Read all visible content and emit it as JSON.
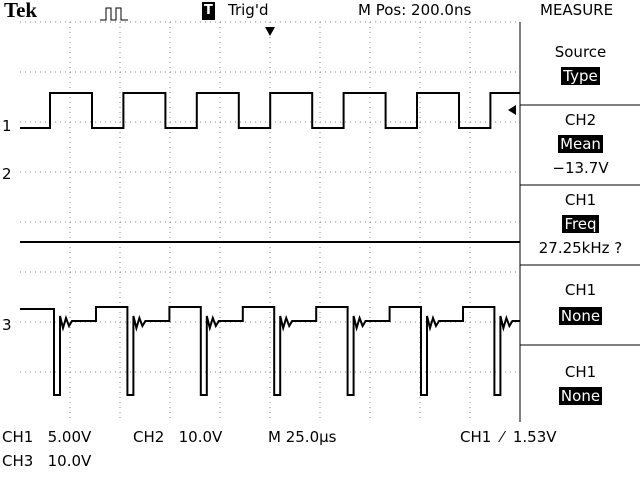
{
  "header": {
    "brand": "Tek",
    "trigger_icon": "T",
    "trigger_status": "Trig'd",
    "position": "M Pos: 200.0ns",
    "menu_title": "MEASURE"
  },
  "channel_markers": [
    "1",
    "2",
    "3"
  ],
  "menu": [
    {
      "label": "Source",
      "value": "Type"
    },
    {
      "label": "CH2",
      "value": "Mean",
      "reading": "−13.7V"
    },
    {
      "label": "CH1",
      "value": "Freq",
      "reading": "27.25kHz ?"
    },
    {
      "label": "CH1",
      "value": "None"
    },
    {
      "label": "CH1",
      "value": "None"
    }
  ],
  "footer": {
    "ch1_scale": "CH1   5.00V",
    "ch2_scale": "CH2   10.0V",
    "timebase": "M 25.0µs",
    "trigger": "CH1  ⁄  1.53V",
    "ch3_scale": "CH3   10.0V"
  }
}
